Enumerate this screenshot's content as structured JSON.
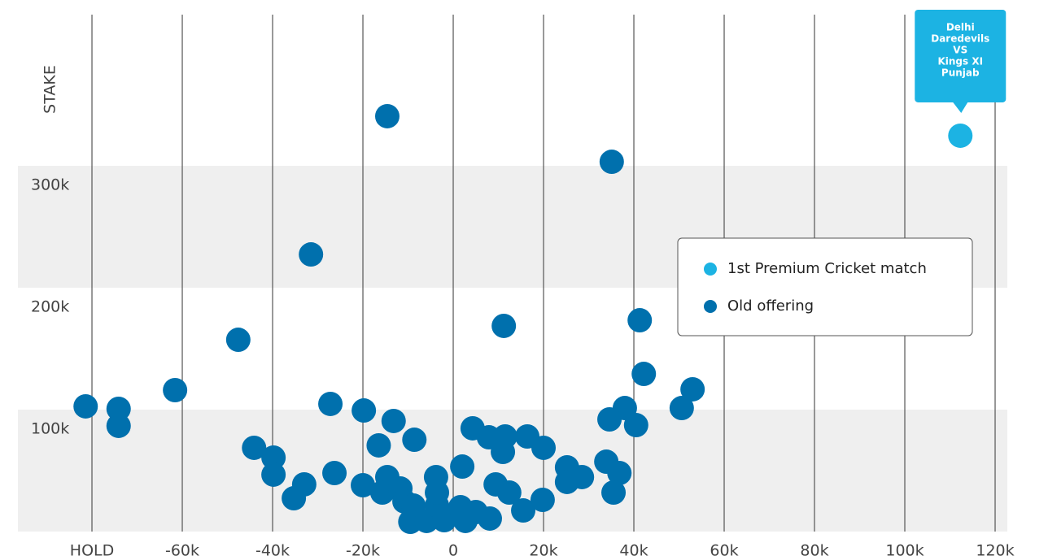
{
  "chart_data": {
    "type": "scatter",
    "y_label": "STAKE",
    "xlim": [
      -96400,
      122700
    ],
    "ylim": [
      0,
      424000
    ],
    "xticks": [
      {
        "value": -80000,
        "label": "HOLD"
      },
      {
        "value": -60000,
        "label": "-60k"
      },
      {
        "value": -40000,
        "label": "-40k"
      },
      {
        "value": -20000,
        "label": "-20k"
      },
      0,
      {
        "value": 20000,
        "label": "20k"
      },
      {
        "value": 40000,
        "label": "40k"
      },
      {
        "value": 60000,
        "label": "60k"
      },
      {
        "value": 80000,
        "label": "80k"
      },
      {
        "value": 100000,
        "label": "100k"
      },
      {
        "value": 120000,
        "label": "120k"
      }
    ],
    "yticks": [
      {
        "value": 100000,
        "label": "100k"
      },
      {
        "value": 200000,
        "label": "200k"
      },
      {
        "value": 300000,
        "label": "300k"
      }
    ],
    "grid": true,
    "annotation_lines": [
      "Delhi",
      "Daredevils",
      "VS",
      "Kings XI",
      "Punjab"
    ],
    "series": [
      {
        "name": "1st Premium Cricket match",
        "color": "#1cb3e3",
        "x": [
          112300
        ],
        "values": [
          324700
        ]
      },
      {
        "name": "Old offering",
        "color": "#0070ad",
        "x": [
          -81400,
          -74100,
          -74100,
          -61600,
          -47600,
          -31500,
          -14600,
          35100,
          11200,
          41300,
          42200,
          53000,
          50600,
          38000,
          34600,
          40500,
          -27200,
          -19800,
          -13200,
          -8600,
          -16500,
          -44100,
          -39800,
          -39800,
          -26300,
          -33000,
          -35300,
          -20000,
          -14600,
          -15700,
          -11700,
          -10800,
          -8800,
          -9500,
          -5900,
          -3600,
          -3600,
          -3800,
          -2000,
          1600,
          2700,
          5000,
          8100,
          2000,
          4300,
          7900,
          11500,
          11000,
          16400,
          20000,
          9400,
          12400,
          15500,
          19800,
          25200,
          25200,
          28500,
          33900,
          36800,
          35500
        ],
        "values": [
          102700,
          100700,
          86700,
          116000,
          157300,
          227300,
          340700,
          303300,
          168700,
          173300,
          129300,
          116700,
          101300,
          101300,
          92000,
          87300,
          104700,
          99300,
          90700,
          75300,
          70700,
          68700,
          60700,
          46700,
          48000,
          38700,
          27300,
          38000,
          44700,
          32000,
          35300,
          24700,
          21300,
          8000,
          8700,
          21300,
          32000,
          44700,
          9300,
          20000,
          8700,
          16000,
          10700,
          53300,
          84700,
          77300,
          78000,
          65300,
          78000,
          68700,
          38700,
          32000,
          17300,
          26000,
          52700,
          40700,
          44700,
          57300,
          48000,
          32000
        ]
      }
    ],
    "legend": "upper right"
  }
}
